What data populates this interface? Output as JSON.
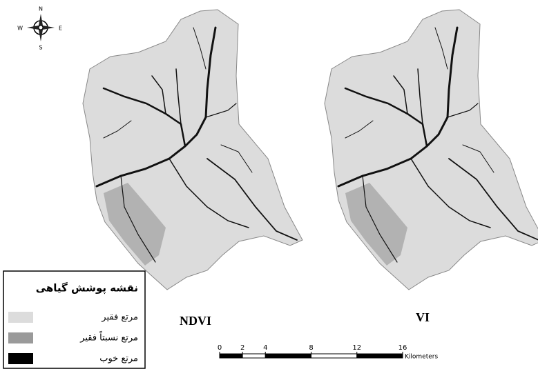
{
  "compass": {
    "north": "N",
    "south": "S",
    "east": "E",
    "west": "W"
  },
  "maps": [
    {
      "label": "NDVI"
    },
    {
      "label": "VI"
    }
  ],
  "legend": {
    "title": "نقشه پوشش گیاهی",
    "items": [
      {
        "label": "مرتع فقیر",
        "color": "#dcdcdc"
      },
      {
        "label": "مرتع نسبتاً فقیر",
        "color": "#9a9a9a"
      },
      {
        "label": "مرتع خوب",
        "color": "#000000"
      }
    ]
  },
  "scale_bar": {
    "ticks": [
      0,
      2,
      4,
      8,
      12,
      16
    ],
    "unit": "Kilometers"
  }
}
